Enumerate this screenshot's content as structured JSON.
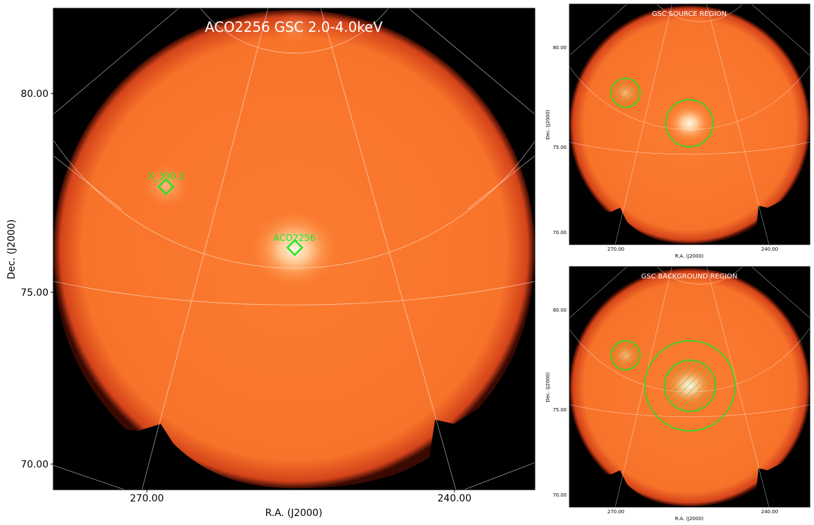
{
  "colors": {
    "disk_core": "#fb7a2e",
    "disk_edge": "#e8531a",
    "source_glow": "#fff4dd",
    "marker": "#22e622",
    "region": "#3ed21e",
    "grid": "#ffffff",
    "background": "#000000"
  },
  "main_panel": {
    "title": "ACO2256 GSC 2.0-4.0keV",
    "xlabel": "R.A. (J2000)",
    "ylabel": "Dec. (J2000)",
    "x_ticks": [
      "270.00",
      "240.00"
    ],
    "y_ticks": [
      "80.00",
      "75.00",
      "70.00"
    ],
    "sources": [
      {
        "label": "X_390.3",
        "marker": "diamond-icon"
      },
      {
        "label": "ACO2256",
        "marker": "diamond-icon"
      }
    ]
  },
  "source_panel": {
    "title": "GSC SOURCE REGION",
    "xlabel": "R.A. (J2000)",
    "ylabel": "Dec. (J2000)",
    "x_ticks": [
      "270.00",
      "240.00"
    ],
    "y_ticks": [
      "80.00",
      "75.00",
      "70.00"
    ]
  },
  "background_panel": {
    "title": "GSC BACKGROUND REGION",
    "xlabel": "R.A. (J2000)",
    "ylabel": "Dec. (J2000)",
    "x_ticks": [
      "270.00",
      "240.00"
    ],
    "y_ticks": [
      "80.00",
      "75.00",
      "70.00"
    ]
  }
}
